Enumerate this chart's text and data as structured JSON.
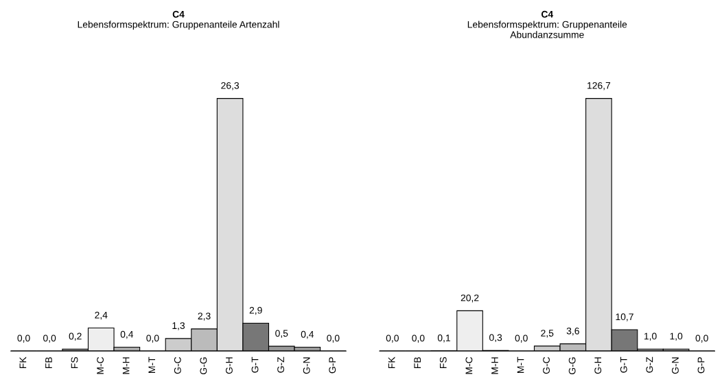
{
  "chart_data": [
    {
      "type": "bar",
      "title": "C4",
      "subtitle": "Lebensformspektrum: Gruppenanteile Artenzahl",
      "tick_labels": "x",
      "categories": [
        "FK",
        "FB",
        "FS",
        "M-C",
        "M-H",
        "M-T",
        "G-C",
        "G-G",
        "G-H",
        "G-T",
        "G-Z",
        "G-N",
        "G-P"
      ],
      "values": [
        0.0,
        0.0,
        0.2,
        2.4,
        0.4,
        0.0,
        1.3,
        2.3,
        26.3,
        2.9,
        0.5,
        0.4,
        0.0
      ],
      "value_labels": [
        "0,0",
        "0,0",
        "0,2",
        "2,4",
        "0,4",
        "0,0",
        "1,3",
        "2,3",
        "26,3",
        "2,9",
        "0,5",
        "0,4",
        "0,0"
      ],
      "colors": [
        "#ffffff",
        "#ffffff",
        "#888888",
        "#eeeeee",
        "#aaaaaa",
        "#ffffff",
        "#cccccc",
        "#bbbbbb",
        "#dddddd",
        "#777777",
        "#999999",
        "#999999",
        "#ffffff"
      ]
    },
    {
      "type": "bar",
      "title": "C4",
      "subtitle": "Lebensformspektrum: Gruppenanteile\nAbundanzsumme",
      "tick_labels": "x",
      "categories": [
        "FK",
        "FB",
        "FS",
        "M-C",
        "M-H",
        "M-T",
        "G-C",
        "G-G",
        "G-H",
        "G-T",
        "G-Z",
        "G-N",
        "G-P"
      ],
      "values": [
        0.0,
        0.0,
        0.1,
        20.2,
        0.3,
        0.0,
        2.5,
        3.6,
        126.7,
        10.7,
        1.0,
        1.0,
        0.0
      ],
      "value_labels": [
        "0,0",
        "0,0",
        "0,1",
        "20,2",
        "0,3",
        "0,0",
        "2,5",
        "3,6",
        "126,7",
        "10,7",
        "1,0",
        "1,0",
        "0,0"
      ],
      "colors": [
        "#ffffff",
        "#ffffff",
        "#888888",
        "#eeeeee",
        "#aaaaaa",
        "#ffffff",
        "#cccccc",
        "#bbbbbb",
        "#dddddd",
        "#777777",
        "#999999",
        "#999999",
        "#ffffff"
      ]
    }
  ]
}
